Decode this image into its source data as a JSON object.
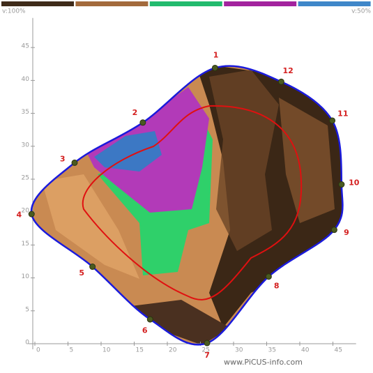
{
  "chart_data": {
    "type": "tomogram",
    "scale_labels": [
      "v:100%",
      "v:50%"
    ],
    "scale_colors": [
      "#3f2b1a",
      "#a36a3c",
      "#22bb6e",
      "#a3239e",
      "#3f87c9"
    ],
    "xlim": [
      -1,
      48.5
    ],
    "ylim": [
      0,
      49.5
    ],
    "xticks": [
      0,
      5,
      10,
      15,
      20,
      25,
      30,
      35,
      40,
      45
    ],
    "yticks": [
      0,
      5,
      10,
      15,
      20,
      25,
      30,
      35,
      40,
      45
    ],
    "outline_color": "#1a1adc",
    "points": [
      {
        "label": "1",
        "x": 27.2,
        "y": 41.9
      },
      {
        "label": "12",
        "x": 37.2,
        "y": 39.8
      },
      {
        "label": "11",
        "x": 44.9,
        "y": 33.9
      },
      {
        "label": "10",
        "x": 46.3,
        "y": 24.2
      },
      {
        "label": "9",
        "x": 45.2,
        "y": 17.3
      },
      {
        "label": "8",
        "x": 35.3,
        "y": 10.2
      },
      {
        "label": "7",
        "x": 26.0,
        "y": 0.1
      },
      {
        "label": "6",
        "x": 17.4,
        "y": 3.7
      },
      {
        "label": "5",
        "x": 8.7,
        "y": 11.7
      },
      {
        "label": "4",
        "x": -0.5,
        "y": 19.7
      },
      {
        "label": "3",
        "x": 6.0,
        "y": 27.5
      },
      {
        "label": "2",
        "x": 16.3,
        "y": 33.6
      }
    ],
    "watermark": "www.PiCUS-info.com"
  }
}
